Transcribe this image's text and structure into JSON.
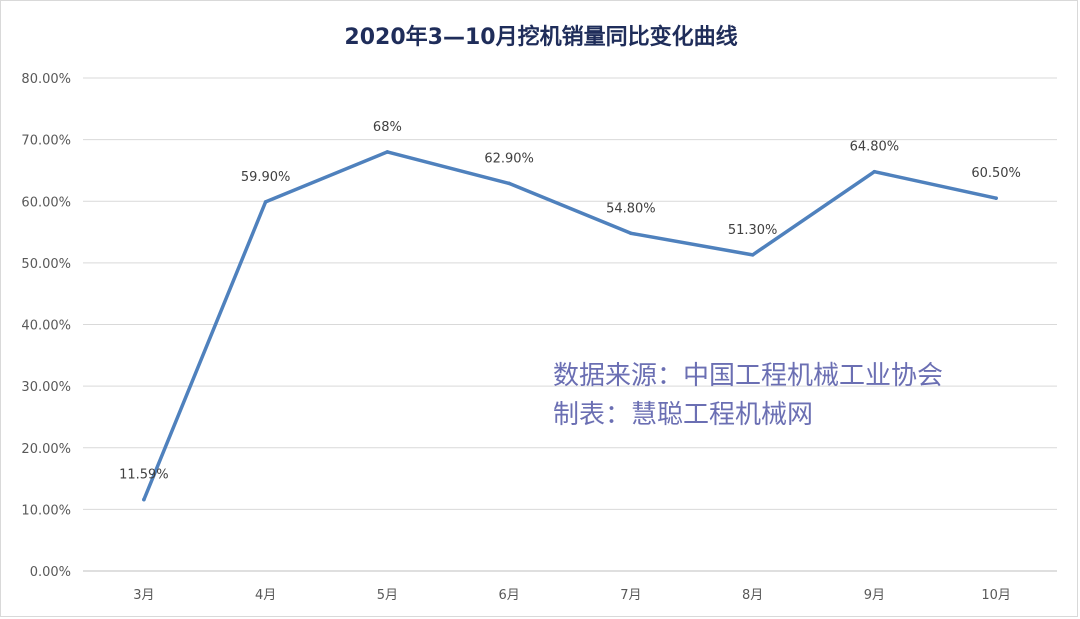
{
  "chart_data": {
    "type": "line",
    "title": "2020年3—10月挖机销量同比变化曲线",
    "xlabel": "",
    "ylabel": "",
    "categories": [
      "3月",
      "4月",
      "5月",
      "6月",
      "7月",
      "8月",
      "9月",
      "10月"
    ],
    "series": [
      {
        "values": [
          11.59,
          59.9,
          68,
          62.9,
          54.8,
          51.3,
          64.8,
          60.5
        ],
        "labels": [
          "11.59%",
          "59.90%",
          "68%",
          "62.90%",
          "54.80%",
          "51.30%",
          "64.80%",
          "60.50%"
        ],
        "color": "#4f81bd"
      }
    ],
    "ylim": [
      0,
      80
    ],
    "yticks": [
      "0.00%",
      "10.00%",
      "20.00%",
      "30.00%",
      "40.00%",
      "50.00%",
      "60.00%",
      "70.00%",
      "80.00%"
    ],
    "grid": true,
    "legend": "none",
    "annotations": [
      "数据来源：中国工程机械工业协会",
      "制表：慧聪工程机械网"
    ]
  }
}
